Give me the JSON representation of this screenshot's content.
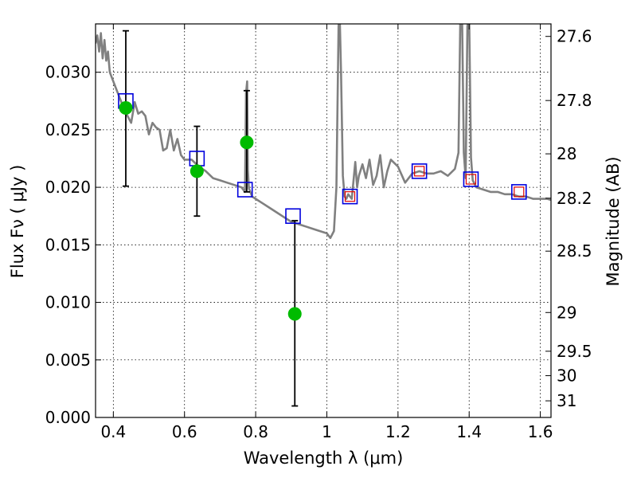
{
  "chart_data": {
    "type": "scatter",
    "xlabel": "Wavelength  λ (μm)",
    "ylabel": "Flux  Fν  ( μJy )",
    "ylabel_right": "Magnitude (AB)",
    "xlim": [
      0.35,
      1.63
    ],
    "ylim": [
      0.0,
      0.0342
    ],
    "grid": true,
    "x_ticks": [
      {
        "value": 0.4,
        "label": "0.4"
      },
      {
        "value": 0.6,
        "label": "0.6"
      },
      {
        "value": 0.8,
        "label": "0.8"
      },
      {
        "value": 1.0,
        "label": "1"
      },
      {
        "value": 1.2,
        "label": "1.2"
      },
      {
        "value": 1.4,
        "label": "1.4"
      },
      {
        "value": 1.6,
        "label": "1.6"
      }
    ],
    "y_ticks": [
      {
        "value": 0.0,
        "label": "0.000"
      },
      {
        "value": 0.005,
        "label": "0.005"
      },
      {
        "value": 0.01,
        "label": "0.010"
      },
      {
        "value": 0.015,
        "label": "0.015"
      },
      {
        "value": 0.02,
        "label": "0.020"
      },
      {
        "value": 0.025,
        "label": "0.025"
      },
      {
        "value": 0.03,
        "label": "0.030"
      }
    ],
    "right_ticks": [
      {
        "value": 27.6,
        "label": "27.6"
      },
      {
        "value": 27.8,
        "label": "27.8"
      },
      {
        "value": 28.0,
        "label": "28"
      },
      {
        "value": 28.2,
        "label": "28.2"
      },
      {
        "value": 28.5,
        "label": "28.5"
      },
      {
        "value": 29.0,
        "label": "29"
      },
      {
        "value": 29.5,
        "label": "29.5"
      },
      {
        "value": 30.0,
        "label": "30"
      },
      {
        "value": 31.0,
        "label": "31"
      }
    ],
    "colors": {
      "model": "#808080",
      "observed": "#00bb00",
      "synthetic_box": "#0000dd",
      "synthetic_box_inner": "#dd0000",
      "errorbar": "#000000"
    },
    "model_spectrum": {
      "x": [
        0.35,
        0.355,
        0.36,
        0.365,
        0.37,
        0.375,
        0.38,
        0.385,
        0.39,
        0.4,
        0.41,
        0.42,
        0.43,
        0.44,
        0.45,
        0.46,
        0.47,
        0.48,
        0.49,
        0.5,
        0.51,
        0.52,
        0.53,
        0.54,
        0.55,
        0.56,
        0.57,
        0.58,
        0.59,
        0.6,
        0.62,
        0.64,
        0.66,
        0.68,
        0.7,
        0.72,
        0.74,
        0.76,
        0.77,
        0.773,
        0.776,
        0.778,
        0.781,
        0.785,
        0.79,
        0.8,
        0.82,
        0.84,
        0.86,
        0.88,
        0.9,
        0.92,
        0.94,
        0.96,
        0.98,
        1.0,
        1.01,
        1.02,
        1.027,
        1.033,
        1.036,
        1.04,
        1.045,
        1.05,
        1.055,
        1.06,
        1.07,
        1.08,
        1.085,
        1.09,
        1.1,
        1.11,
        1.12,
        1.13,
        1.14,
        1.15,
        1.16,
        1.17,
        1.18,
        1.2,
        1.22,
        1.24,
        1.26,
        1.28,
        1.3,
        1.32,
        1.34,
        1.36,
        1.37,
        1.375,
        1.38,
        1.385,
        1.39,
        1.395,
        1.4,
        1.405,
        1.41,
        1.42,
        1.44,
        1.46,
        1.48,
        1.5,
        1.52,
        1.54,
        1.56,
        1.58,
        1.6,
        1.62,
        1.63
      ],
      "y": [
        0.0325,
        0.0332,
        0.0318,
        0.0334,
        0.0312,
        0.0328,
        0.031,
        0.0318,
        0.03,
        0.0292,
        0.0284,
        0.0276,
        0.0268,
        0.0262,
        0.0256,
        0.0274,
        0.0264,
        0.0266,
        0.0262,
        0.0246,
        0.0256,
        0.0252,
        0.025,
        0.0232,
        0.0234,
        0.025,
        0.0232,
        0.0242,
        0.0228,
        0.0224,
        0.0224,
        0.0218,
        0.0214,
        0.0208,
        0.0206,
        0.0204,
        0.0202,
        0.02,
        0.0196,
        0.0282,
        0.0292,
        0.0215,
        0.0199,
        0.0196,
        0.0192,
        0.019,
        0.0186,
        0.0182,
        0.0178,
        0.0174,
        0.017,
        0.0168,
        0.0166,
        0.0164,
        0.0162,
        0.016,
        0.0156,
        0.0162,
        0.02,
        0.034,
        0.035,
        0.03,
        0.021,
        0.0192,
        0.019,
        0.0194,
        0.019,
        0.0222,
        0.02,
        0.021,
        0.022,
        0.0208,
        0.0224,
        0.0202,
        0.021,
        0.0228,
        0.02,
        0.0214,
        0.0224,
        0.0218,
        0.0204,
        0.0212,
        0.0214,
        0.0212,
        0.0212,
        0.0214,
        0.021,
        0.0216,
        0.023,
        0.0342,
        0.035,
        0.023,
        0.0208,
        0.034,
        0.035,
        0.0226,
        0.0206,
        0.02,
        0.0198,
        0.0196,
        0.0196,
        0.0194,
        0.0194,
        0.0192,
        0.0192,
        0.019,
        0.019,
        0.019,
        0.0189
      ]
    },
    "observed": [
      {
        "x": 0.435,
        "y": 0.0269,
        "yerr_low": 0.0201,
        "yerr_high": 0.0336
      },
      {
        "x": 0.635,
        "y": 0.0214,
        "yerr_low": 0.0175,
        "yerr_high": 0.0253
      },
      {
        "x": 0.775,
        "y": 0.0239,
        "yerr_low": 0.0196,
        "yerr_high": 0.0284
      },
      {
        "x": 0.91,
        "y": 0.009,
        "yerr_low": 0.001,
        "yerr_high": 0.0171
      }
    ],
    "synthetic_boxes": [
      {
        "x": 0.435,
        "y": 0.0275,
        "inner": false
      },
      {
        "x": 0.635,
        "y": 0.0225,
        "inner": false
      },
      {
        "x": 0.77,
        "y": 0.0198,
        "inner": false
      },
      {
        "x": 0.905,
        "y": 0.0175,
        "inner": false
      },
      {
        "x": 1.065,
        "y": 0.0192,
        "inner": true
      },
      {
        "x": 1.26,
        "y": 0.0214,
        "inner": true
      },
      {
        "x": 1.405,
        "y": 0.0207,
        "inner": true
      },
      {
        "x": 1.54,
        "y": 0.0196,
        "inner": true
      }
    ]
  }
}
